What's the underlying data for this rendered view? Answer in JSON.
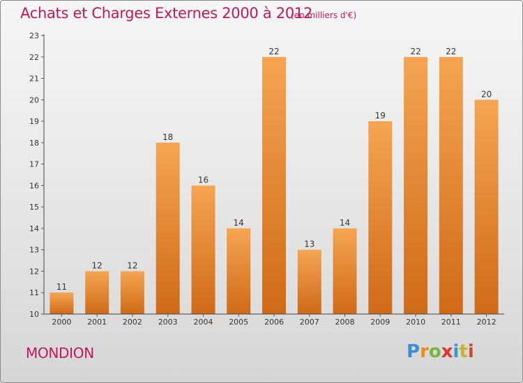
{
  "header": {
    "title": "Achats et Charges Externes 2000 à 2012",
    "unit": "(en milliers d'€)"
  },
  "footer": {
    "town": "MONDION",
    "logo_letters": [
      "P",
      "r",
      "o",
      "x",
      "i",
      "t",
      "i"
    ],
    "logo_colors": [
      "#3a8fd6",
      "#f08a1c",
      "#7ab63a",
      "#e0322a",
      "#2e9ad6",
      "#c9b52a",
      "#d4452c"
    ]
  },
  "chart_data": {
    "type": "bar",
    "categories": [
      "2000",
      "2001",
      "2002",
      "2003",
      "2004",
      "2005",
      "2006",
      "2007",
      "2008",
      "2009",
      "2010",
      "2011",
      "2012"
    ],
    "values": [
      11,
      12,
      12,
      18,
      16,
      14,
      22,
      13,
      14,
      19,
      22,
      22,
      20
    ],
    "ylim": [
      10,
      23
    ],
    "yticks": [
      10,
      11,
      12,
      13,
      14,
      15,
      16,
      17,
      18,
      19,
      20,
      21,
      22,
      23
    ],
    "grid": false,
    "bar_color_top": "#f5a552",
    "bar_color_bottom": "#cf6a18"
  }
}
